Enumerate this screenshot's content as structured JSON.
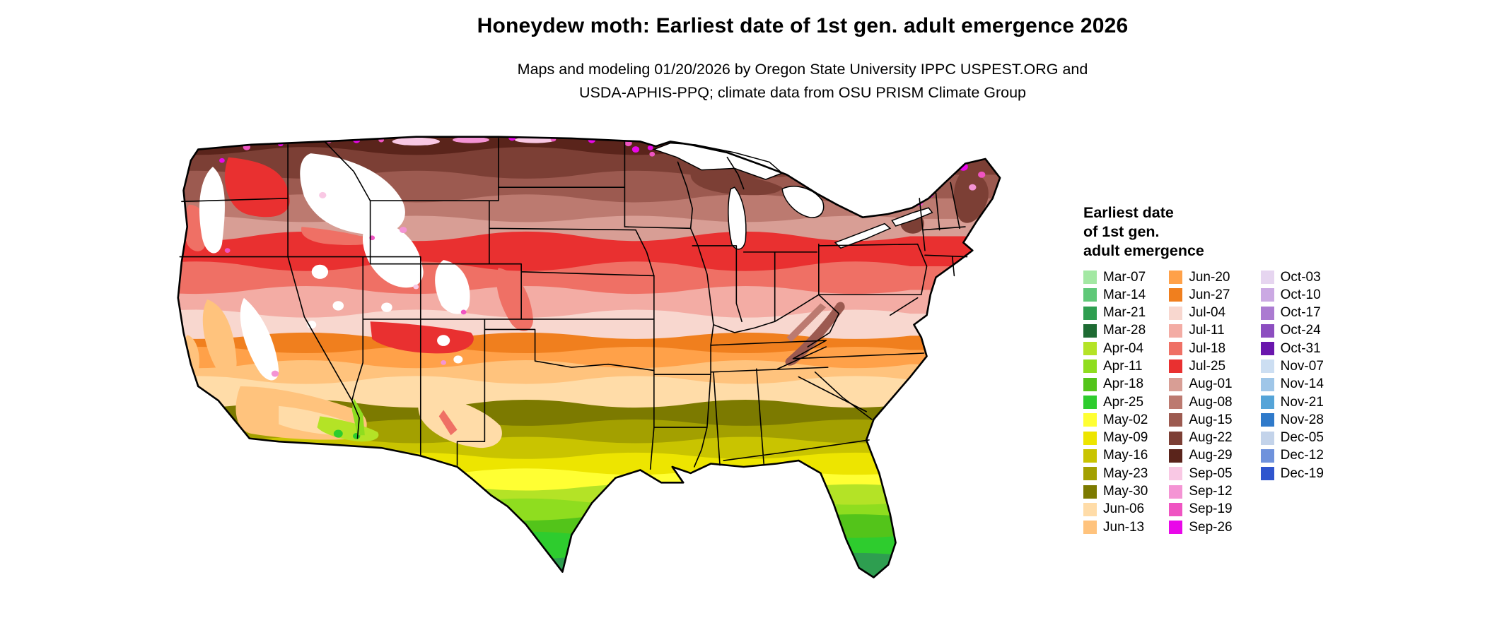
{
  "header": {
    "title": "Honeydew moth: Earliest date of 1st gen. adult emergence 2026",
    "subtitle_line1": "Maps and modeling 01/20/2026 by Oregon State University IPPC USPEST.ORG and",
    "subtitle_line2": "USDA-APHIS-PPQ; climate data from OSU PRISM Climate Group"
  },
  "legend": {
    "title_lines": [
      "Earliest date",
      "of 1st gen.",
      "adult emergence"
    ],
    "columns": [
      [
        "Mar-07",
        "Mar-14",
        "Mar-21",
        "Mar-28",
        "Apr-04",
        "Apr-11",
        "Apr-18",
        "Apr-25",
        "May-02",
        "May-09",
        "May-16",
        "May-23",
        "May-30",
        "Jun-06",
        "Jun-13"
      ],
      [
        "Jun-20",
        "Jun-27",
        "Jul-04",
        "Jul-11",
        "Jul-18",
        "Jul-25",
        "Aug-01",
        "Aug-08",
        "Aug-15",
        "Aug-22",
        "Aug-29",
        "Sep-05",
        "Sep-12",
        "Sep-19",
        "Sep-26"
      ],
      [
        "Oct-03",
        "Oct-10",
        "Oct-17",
        "Oct-24",
        "Oct-31",
        "Nov-07",
        "Nov-14",
        "Nov-21",
        "Nov-28",
        "Dec-05",
        "Dec-12",
        "Dec-19"
      ]
    ]
  },
  "map": {
    "palette": {
      "Mar-07": "#A3E8A3",
      "Mar-14": "#5FC878",
      "Mar-21": "#2E9E50",
      "Mar-28": "#1E6B33",
      "Apr-04": "#B4E326",
      "Apr-11": "#8FDD1F",
      "Apr-18": "#53C41A",
      "Apr-25": "#2ECC2E",
      "May-02": "#FFFF33",
      "May-09": "#EDE500",
      "May-16": "#C9C400",
      "May-23": "#A3A000",
      "May-30": "#7C7A00",
      "Jun-06": "#FFDCA8",
      "Jun-13": "#FFC37D",
      "Jun-20": "#FFA149",
      "Jun-27": "#F07F1E",
      "Jul-04": "#F8D7CF",
      "Jul-11": "#F3ACA4",
      "Jul-18": "#EF7065",
      "Jul-25": "#E93030",
      "Aug-01": "#D89E95",
      "Aug-08": "#BC7A70",
      "Aug-15": "#9C5A50",
      "Aug-22": "#7C3F35",
      "Aug-29": "#5A241B",
      "Sep-05": "#F9C8E4",
      "Sep-12": "#F494D4",
      "Sep-19": "#EF54C2",
      "Sep-26": "#E908E9",
      "Oct-03": "#E6D5F0",
      "Oct-10": "#CBA9E3",
      "Oct-17": "#AB7BD1",
      "Oct-24": "#8C4EC0",
      "Oct-31": "#6A16AD",
      "Nov-07": "#CCDEF2",
      "Nov-14": "#9FC6E8",
      "Nov-21": "#55A4D8",
      "Nov-28": "#2F7ACA",
      "Dec-05": "#C3D3EA",
      "Dec-12": "#6F92DC",
      "Dec-19": "#2F55CE"
    },
    "colors": {
      "no_data": "#FFFFFF",
      "lake": "#FFFFFF",
      "border": "#000000",
      "background": "#FFFFFF"
    }
  }
}
